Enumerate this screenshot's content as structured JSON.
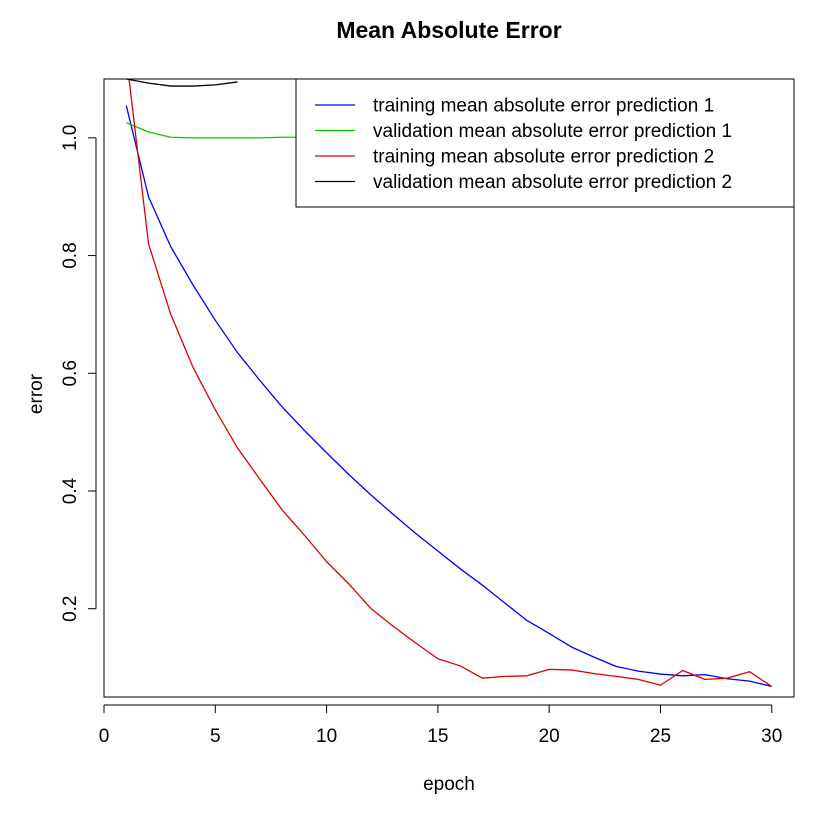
{
  "chart_data": {
    "type": "line",
    "title": "Mean Absolute Error",
    "xlabel": "epoch",
    "ylabel": "error",
    "xlim": [
      0,
      31
    ],
    "ylim": [
      0.05,
      1.1
    ],
    "xticks": [
      0,
      5,
      10,
      15,
      20,
      25,
      30
    ],
    "yticks": [
      0.2,
      0.4,
      0.6,
      0.8,
      1.0
    ],
    "ytick_labels": [
      "0.2",
      "0.4",
      "0.6",
      "0.8",
      "1.0"
    ],
    "grid": false,
    "legend_position": "top-right",
    "series": [
      {
        "name": "training mean absolute error prediction 1",
        "color": "#0000ff",
        "x": [
          1,
          2,
          3,
          4,
          5,
          6,
          7,
          8,
          9,
          10,
          11,
          12,
          13,
          14,
          15,
          16,
          17,
          18,
          19,
          20,
          21,
          22,
          23,
          24,
          25,
          26,
          27,
          28,
          29,
          30
        ],
        "y": [
          1.055,
          0.9,
          0.815,
          0.75,
          0.69,
          0.635,
          0.588,
          0.543,
          0.503,
          0.465,
          0.428,
          0.393,
          0.36,
          0.328,
          0.298,
          0.268,
          0.24,
          0.21,
          0.18,
          0.158,
          0.135,
          0.118,
          0.102,
          0.094,
          0.089,
          0.086,
          0.088,
          0.081,
          0.077,
          0.068
        ]
      },
      {
        "name": "validation mean absolute error prediction 1",
        "color": "#00cc00",
        "x": [
          1,
          2,
          3,
          4,
          5,
          6,
          7,
          8,
          9,
          10
        ],
        "y": [
          1.026,
          1.01,
          1.001,
          1.0,
          1.0,
          1.0,
          1.0,
          1.001,
          1.001,
          1.001
        ]
      },
      {
        "name": "training mean absolute error prediction 2",
        "color": "#dd0000",
        "x": [
          1,
          2,
          3,
          4,
          5,
          6,
          7,
          8,
          9,
          10,
          11,
          12,
          13,
          14,
          15,
          16,
          17,
          18,
          19,
          20,
          21,
          22,
          23,
          24,
          25,
          26,
          27,
          28,
          29,
          30
        ],
        "y": [
          1.14,
          0.82,
          0.7,
          0.61,
          0.538,
          0.473,
          0.42,
          0.368,
          0.325,
          0.28,
          0.242,
          0.2,
          0.17,
          0.142,
          0.115,
          0.103,
          0.082,
          0.085,
          0.086,
          0.097,
          0.096,
          0.09,
          0.085,
          0.08,
          0.07,
          0.095,
          0.08,
          0.082,
          0.093,
          0.068
        ]
      },
      {
        "name": "validation mean absolute error prediction 2",
        "color": "#000000",
        "x": [
          1,
          2,
          3,
          4,
          5,
          6
        ],
        "y": [
          1.1,
          1.093,
          1.088,
          1.088,
          1.09,
          1.095
        ]
      }
    ]
  }
}
